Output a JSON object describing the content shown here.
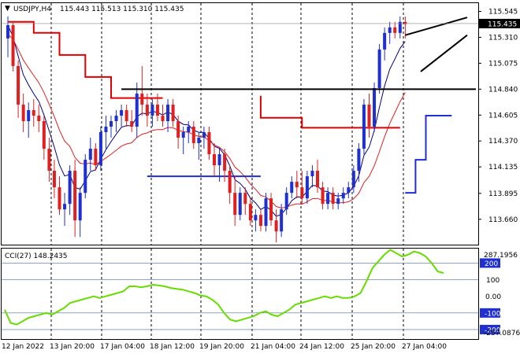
{
  "header": {
    "arrow": "▼",
    "symbol": "USDJPY,H4",
    "ohlc": "115.443 115.513 115.310 115.435"
  },
  "cci_panel": {
    "label": "CCI(27) 148.2435",
    "max_label": "287.1956",
    "min_label": "-257.0876"
  },
  "colors": {
    "bull_candle": "#1f2fd0",
    "bear_candle": "#e02020",
    "ma_fast": "#000080",
    "ma_slow": "#e02020",
    "step_red": "#e00000",
    "step_blue": "#1f2fd0",
    "horizontal_level": "#000000",
    "cci_line": "#66dd00",
    "price_tag_bg": "#000000",
    "level_tag_bg": "#1f2fd0"
  },
  "chart_data": [
    {
      "type": "candlestick",
      "x_tick_labels": [
        "12 Jan 2022",
        "13 Jan 20:00",
        "17 Jan 04:00",
        "18 Jan 12:00",
        "19 Jan 20:00",
        "21 Jan 04:00",
        "24 Jan 12:00",
        "25 Jan 20:00",
        "27 Jan 04:00"
      ],
      "y_ticks": [
        115.545,
        115.31,
        115.075,
        114.84,
        114.605,
        114.37,
        114.135,
        113.895,
        113.66
      ],
      "ylim": [
        113.43,
        115.62
      ],
      "current_price": 115.435,
      "horizontal_level": 114.84,
      "candles": [
        [
          115.3,
          115.5,
          115.13,
          115.42
        ],
        [
          115.42,
          115.45,
          115.0,
          115.05
        ],
        [
          115.05,
          115.1,
          114.58,
          114.7
        ],
        [
          114.7,
          114.8,
          114.45,
          114.55
        ],
        [
          114.55,
          114.72,
          114.4,
          114.65
        ],
        [
          114.65,
          114.75,
          114.5,
          114.6
        ],
        [
          114.6,
          114.7,
          114.45,
          114.55
        ],
        [
          114.55,
          114.6,
          114.2,
          114.3
        ],
        [
          114.3,
          114.4,
          114.0,
          114.1
        ],
        [
          114.1,
          114.2,
          113.85,
          113.95
        ],
        [
          113.95,
          114.05,
          113.7,
          113.75
        ],
        [
          113.75,
          113.9,
          113.6,
          113.8
        ],
        [
          113.8,
          114.15,
          113.7,
          114.1
        ],
        [
          114.1,
          114.2,
          113.5,
          113.65
        ],
        [
          113.65,
          113.95,
          113.5,
          113.9
        ],
        [
          113.9,
          114.25,
          113.85,
          114.2
        ],
        [
          114.2,
          114.4,
          114.1,
          114.3
        ],
        [
          114.3,
          114.35,
          114.1,
          114.15
        ],
        [
          114.15,
          114.5,
          114.1,
          114.45
        ],
        [
          114.45,
          114.6,
          114.3,
          114.5
        ],
        [
          114.5,
          114.6,
          114.4,
          114.55
        ],
        [
          114.55,
          114.65,
          114.45,
          114.6
        ],
        [
          114.6,
          114.7,
          114.5,
          114.65
        ],
        [
          114.65,
          114.7,
          114.5,
          114.55
        ],
        [
          114.55,
          114.65,
          114.45,
          114.5
        ],
        [
          114.5,
          114.9,
          114.4,
          114.8
        ],
        [
          114.8,
          115.05,
          114.6,
          114.7
        ],
        [
          114.7,
          114.8,
          114.5,
          114.6
        ],
        [
          114.6,
          114.75,
          114.5,
          114.7
        ],
        [
          114.7,
          114.8,
          114.55,
          114.6
        ],
        [
          114.6,
          114.7,
          114.5,
          114.55
        ],
        [
          114.55,
          114.75,
          114.45,
          114.7
        ],
        [
          114.7,
          114.75,
          114.5,
          114.55
        ],
        [
          114.55,
          114.6,
          114.3,
          114.4
        ],
        [
          114.4,
          114.5,
          114.25,
          114.45
        ],
        [
          114.45,
          114.55,
          114.35,
          114.5
        ],
        [
          114.5,
          114.55,
          114.3,
          114.35
        ],
        [
          114.35,
          114.45,
          114.2,
          114.4
        ],
        [
          114.4,
          114.5,
          114.3,
          114.45
        ],
        [
          114.45,
          114.5,
          114.2,
          114.25
        ],
        [
          114.25,
          114.35,
          114.05,
          114.15
        ],
        [
          114.15,
          114.3,
          114.0,
          114.25
        ],
        [
          114.25,
          114.3,
          114.0,
          114.1
        ],
        [
          114.1,
          114.15,
          113.8,
          113.9
        ],
        [
          113.9,
          114.05,
          113.6,
          113.7
        ],
        [
          113.7,
          113.95,
          113.65,
          113.9
        ],
        [
          113.9,
          113.95,
          113.7,
          113.8
        ],
        [
          113.8,
          113.85,
          113.6,
          113.65
        ],
        [
          113.65,
          113.75,
          113.55,
          113.7
        ],
        [
          113.7,
          113.75,
          113.55,
          113.6
        ],
        [
          113.6,
          113.9,
          113.55,
          113.85
        ],
        [
          113.85,
          113.9,
          113.6,
          113.65
        ],
        [
          113.65,
          113.75,
          113.45,
          113.55
        ],
        [
          113.55,
          113.8,
          113.5,
          113.75
        ],
        [
          113.75,
          113.95,
          113.7,
          113.9
        ],
        [
          113.9,
          114.05,
          113.85,
          114.0
        ],
        [
          114.0,
          114.1,
          113.85,
          113.95
        ],
        [
          113.95,
          114.1,
          113.8,
          113.85
        ],
        [
          113.85,
          114.1,
          113.8,
          114.05
        ],
        [
          114.05,
          114.15,
          113.95,
          114.1
        ],
        [
          114.1,
          114.2,
          113.9,
          113.95
        ],
        [
          113.95,
          114.0,
          113.75,
          113.8
        ],
        [
          113.8,
          113.95,
          113.75,
          113.9
        ],
        [
          113.9,
          113.95,
          113.75,
          113.8
        ],
        [
          113.8,
          113.9,
          113.75,
          113.85
        ],
        [
          113.85,
          113.95,
          113.8,
          113.9
        ],
        [
          113.9,
          114.0,
          113.85,
          113.95
        ],
        [
          113.95,
          114.15,
          113.9,
          114.1
        ],
        [
          114.1,
          114.35,
          114.0,
          114.3
        ],
        [
          114.3,
          114.75,
          114.25,
          114.7
        ],
        [
          114.7,
          114.8,
          114.4,
          114.5
        ],
        [
          114.5,
          114.9,
          114.45,
          114.85
        ],
        [
          114.85,
          115.25,
          114.8,
          115.2
        ],
        [
          115.2,
          115.4,
          115.1,
          115.35
        ],
        [
          115.35,
          115.45,
          115.25,
          115.4
        ],
        [
          115.4,
          115.45,
          115.3,
          115.35
        ],
        [
          115.35,
          115.5,
          115.3,
          115.45
        ],
        [
          115.45,
          115.5,
          115.3,
          115.43
        ]
      ],
      "step_red_segments": [
        [
          [
            0,
            115.45
          ],
          [
            5,
            115.45
          ],
          [
            5,
            115.35
          ],
          [
            10,
            115.35
          ],
          [
            10,
            115.15
          ],
          [
            15,
            115.15
          ],
          [
            15,
            114.95
          ],
          [
            20,
            114.95
          ],
          [
            20,
            114.76
          ],
          [
            30,
            114.76
          ]
        ],
        [
          [
            49,
            114.78
          ],
          [
            49,
            114.58
          ],
          [
            57,
            114.58
          ],
          [
            57,
            114.49
          ],
          [
            76,
            114.49
          ]
        ]
      ],
      "step_blue_segments": [
        [
          [
            27,
            114.05
          ],
          [
            49,
            114.05
          ]
        ],
        [
          [
            77,
            113.9
          ],
          [
            79,
            113.9
          ],
          [
            79,
            114.2
          ],
          [
            81,
            114.2
          ],
          [
            81,
            114.6
          ],
          [
            86,
            114.6
          ]
        ]
      ],
      "trendlines": [
        [
          [
            77,
            115.33
          ],
          [
            89,
            115.49
          ]
        ],
        [
          [
            80,
            115.0
          ],
          [
            89,
            115.33
          ]
        ]
      ]
    },
    {
      "type": "line",
      "title": "CCI(27) 148.2435",
      "value": 148.2435,
      "ylim": [
        -257.0876,
        287.1956
      ],
      "y_ticks": [
        200,
        100,
        0.0,
        -100,
        -200
      ],
      "levels": [
        200,
        100,
        -100,
        -200
      ],
      "values": [
        -80,
        -160,
        -170,
        -150,
        -130,
        -120,
        -110,
        -100,
        -110,
        -90,
        -70,
        -40,
        -30,
        -20,
        -10,
        0,
        -10,
        0,
        10,
        20,
        30,
        60,
        60,
        55,
        60,
        70,
        65,
        60,
        50,
        45,
        40,
        30,
        20,
        5,
        0,
        -20,
        -50,
        -100,
        -140,
        -150,
        -140,
        -130,
        -120,
        -100,
        -90,
        -110,
        -120,
        -100,
        -80,
        -50,
        -40,
        -30,
        -20,
        -10,
        0,
        -10,
        0,
        -10,
        -10,
        0,
        20,
        90,
        170,
        210,
        250,
        280,
        260,
        240,
        250,
        270,
        260,
        240,
        200,
        150,
        140
      ]
    }
  ]
}
